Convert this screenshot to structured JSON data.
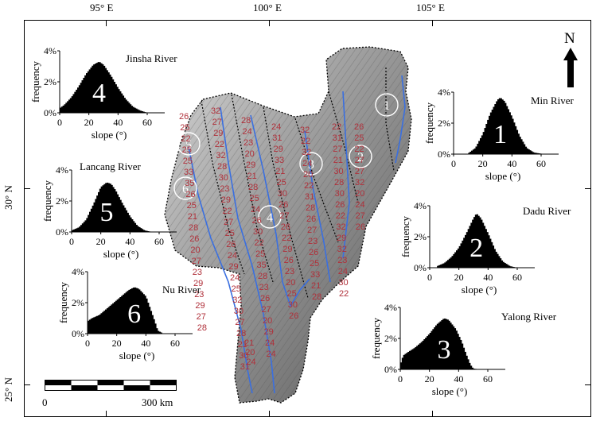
{
  "lon_labels": [
    "95° E",
    "100° E",
    "105° E"
  ],
  "lat_labels": [
    "30° N",
    "25° N"
  ],
  "north": "N",
  "scale": {
    "start": "0",
    "end": "300 km"
  },
  "axis": {
    "xlabel": "slope (°)",
    "ylabel": "frequency",
    "yticks": [
      "0%",
      "2%",
      "4%"
    ],
    "xticks": [
      "0",
      "20",
      "40",
      "60"
    ]
  },
  "rivers": [
    {
      "number": "1",
      "name": "Min River"
    },
    {
      "number": "2",
      "name": "Dadu River"
    },
    {
      "number": "3",
      "name": "Yalong River"
    },
    {
      "number": "4",
      "name": "Jinsha River"
    },
    {
      "number": "5",
      "name": "Lancang River"
    },
    {
      "number": "6",
      "name": "Nu River"
    }
  ],
  "chart_data": [
    {
      "type": "area",
      "title": "Min River",
      "label": "1",
      "xlabel": "slope (°)",
      "ylabel": "frequency",
      "xlim": [
        0,
        72
      ],
      "ylim": [
        0,
        4
      ],
      "x": [
        10,
        15,
        20,
        25,
        30,
        32,
        35,
        40,
        45,
        50,
        55,
        62
      ],
      "y": [
        0.05,
        0.4,
        1.3,
        2.6,
        3.5,
        3.65,
        3.4,
        2.4,
        1.2,
        0.4,
        0.1,
        0.0
      ]
    },
    {
      "type": "area",
      "title": "Dadu River",
      "label": "2",
      "xlabel": "slope (°)",
      "ylabel": "frequency",
      "xlim": [
        0,
        72
      ],
      "ylim": [
        0,
        4
      ],
      "x": [
        5,
        10,
        15,
        20,
        25,
        30,
        32,
        35,
        40,
        45,
        50,
        55,
        60
      ],
      "y": [
        0.1,
        0.3,
        0.7,
        1.3,
        2.2,
        3.2,
        3.5,
        3.2,
        2.2,
        1.1,
        0.4,
        0.1,
        0.0
      ]
    },
    {
      "type": "area",
      "title": "Yalong River",
      "label": "3",
      "xlabel": "slope (°)",
      "ylabel": "frequency",
      "xlim": [
        0,
        72
      ],
      "ylim": [
        0,
        4
      ],
      "x": [
        0,
        2,
        5,
        10,
        15,
        20,
        25,
        30,
        33,
        38,
        42,
        45,
        48,
        50,
        55
      ],
      "y": [
        0.3,
        0.9,
        1.1,
        1.4,
        1.8,
        2.3,
        2.9,
        3.3,
        3.2,
        2.6,
        1.8,
        1.0,
        0.3,
        0.05,
        0.0
      ]
    },
    {
      "type": "area",
      "title": "Jinsha River",
      "label": "4",
      "xlabel": "slope (°)",
      "ylabel": "frequency",
      "xlim": [
        0,
        72
      ],
      "ylim": [
        0,
        4
      ],
      "x": [
        0,
        3,
        8,
        13,
        18,
        23,
        27,
        30,
        35,
        40,
        45,
        50,
        55,
        60
      ],
      "y": [
        0.3,
        0.5,
        1.0,
        1.7,
        2.5,
        3.1,
        3.3,
        3.1,
        2.4,
        1.6,
        0.9,
        0.4,
        0.15,
        0.0
      ]
    },
    {
      "type": "area",
      "title": "Lancang River",
      "label": "5",
      "xlabel": "slope (°)",
      "ylabel": "frequency",
      "xlim": [
        0,
        72
      ],
      "ylim": [
        0,
        4
      ],
      "x": [
        0,
        5,
        10,
        15,
        20,
        24,
        27,
        30,
        35,
        40,
        45,
        50,
        55
      ],
      "y": [
        0.1,
        0.3,
        0.8,
        1.8,
        2.9,
        3.2,
        3.1,
        2.7,
        1.8,
        1.0,
        0.4,
        0.1,
        0.0
      ]
    },
    {
      "type": "area",
      "title": "Nu River",
      "label": "6",
      "xlabel": "slope (°)",
      "ylabel": "frequency",
      "xlim": [
        0,
        72
      ],
      "ylim": [
        0,
        4
      ],
      "x": [
        0,
        3,
        8,
        13,
        18,
        23,
        28,
        32,
        35,
        40,
        43,
        46,
        48,
        52
      ],
      "y": [
        0.8,
        1.0,
        1.2,
        1.6,
        2.0,
        2.4,
        2.8,
        3.0,
        2.9,
        2.4,
        1.6,
        0.8,
        0.2,
        0.0
      ]
    }
  ],
  "section_numbers": [
    "26",
    "25",
    "22",
    "25",
    "25",
    "33",
    "35",
    "26",
    "25",
    "21",
    "28",
    "26",
    "20",
    "27",
    "23",
    "29",
    "23",
    "29",
    "27",
    "28",
    "32",
    "27",
    "29",
    "22",
    "32",
    "28",
    "30",
    "23",
    "29",
    "22",
    "27",
    "25",
    "26",
    "24",
    "29",
    "24",
    "25",
    "32",
    "30",
    "27",
    "28",
    "21",
    "30",
    "31",
    "28",
    "24",
    "23",
    "20",
    "29",
    "21",
    "28",
    "25",
    "24",
    "26",
    "30",
    "22",
    "25",
    "35",
    "28",
    "23",
    "26",
    "27",
    "20",
    "29",
    "24",
    "24",
    "24",
    "31",
    "29",
    "33",
    "21",
    "25",
    "30",
    "26",
    "27",
    "26",
    "22",
    "29",
    "26",
    "23",
    "20",
    "25",
    "30",
    "26",
    "32",
    "22",
    "32",
    "24",
    "20",
    "22",
    "31",
    "28",
    "26",
    "27",
    "23",
    "26",
    "25",
    "33",
    "21",
    "28",
    "22",
    "31",
    "27",
    "21",
    "30",
    "28",
    "30",
    "26",
    "22",
    "32",
    "29",
    "32",
    "23",
    "24",
    "30",
    "22",
    "26",
    "25",
    "22",
    "27",
    "27",
    "32",
    "20",
    "24",
    "27",
    "26",
    "21",
    "20",
    "24"
  ],
  "colors": {
    "river": "#3a6fe0",
    "section_label": "#b0303a",
    "histogram": "#000000"
  }
}
